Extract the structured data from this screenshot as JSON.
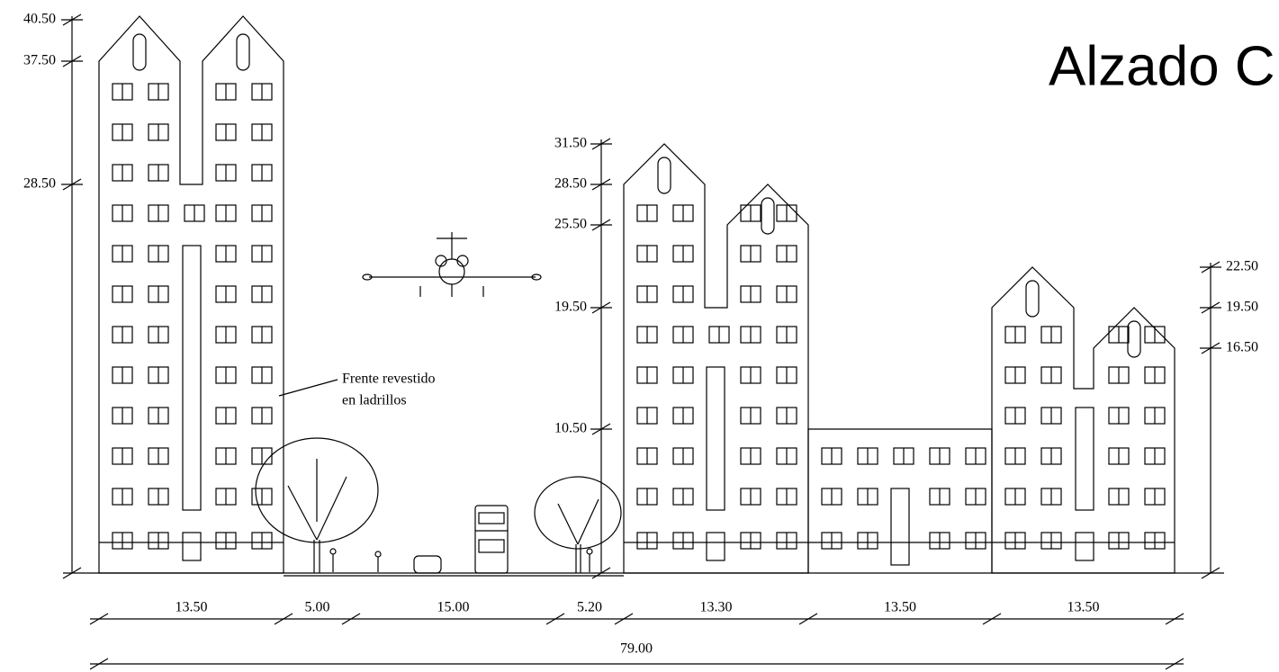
{
  "title": "Alzado C",
  "annotation": {
    "line1": "Frente revestido",
    "line2": "en ladrillos"
  },
  "levels": {
    "left": [
      "40.50",
      "37.50",
      "28.50"
    ],
    "middle": [
      "31.50",
      "28.50",
      "25.50",
      "19.50",
      "10.50"
    ],
    "right": [
      "22.50",
      "19.50",
      "16.50"
    ]
  },
  "dimensions": {
    "partial": [
      "13.50",
      "5.00",
      "15.00",
      "5.20",
      "13.30",
      "13.50",
      "13.50"
    ],
    "total": "79.00"
  }
}
